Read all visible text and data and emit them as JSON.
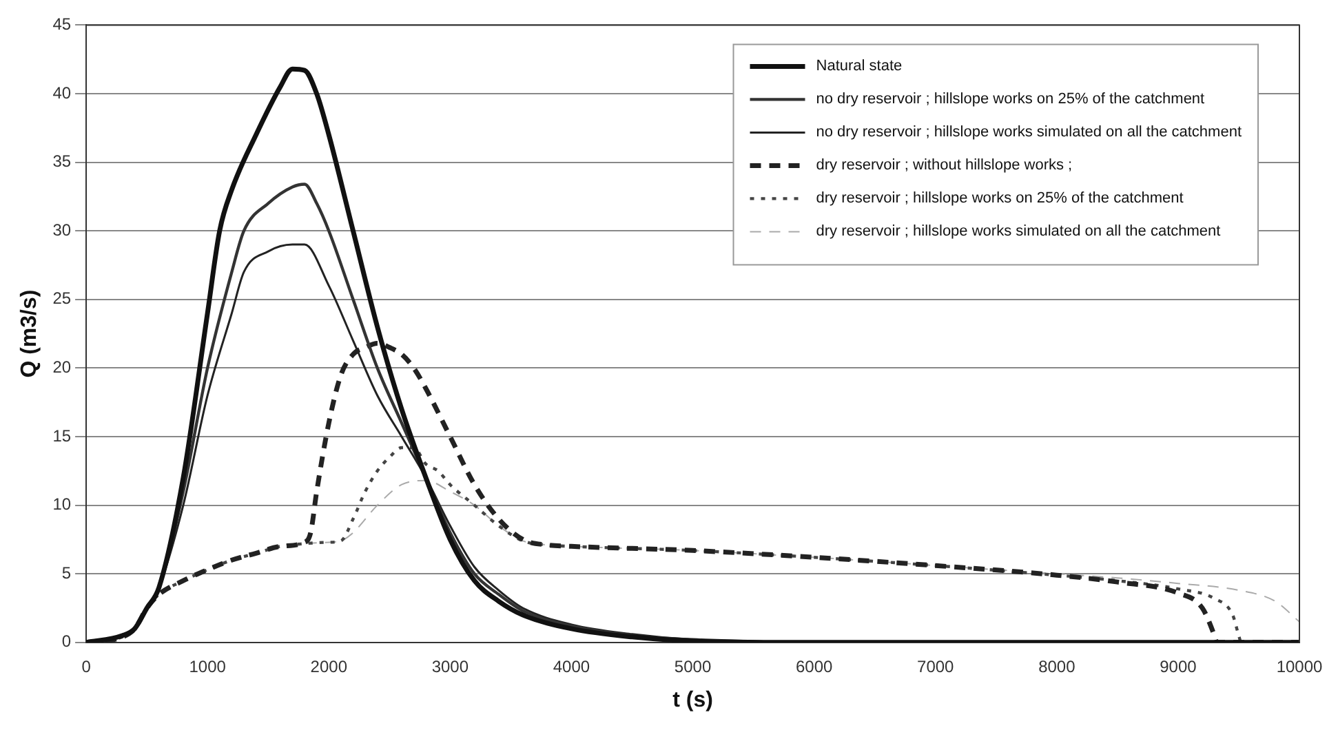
{
  "chart_data": {
    "type": "line",
    "xlabel": "t (s)",
    "ylabel": "Q (m3/s)",
    "xlim": [
      0,
      10000
    ],
    "xticks": [
      0,
      1000,
      2000,
      3000,
      4000,
      5000,
      6000,
      7000,
      8000,
      9000,
      10000
    ],
    "ylim": [
      0,
      45
    ],
    "yticks": [
      0,
      5,
      10,
      15,
      20,
      25,
      30,
      35,
      40,
      45
    ],
    "grid": "y",
    "legend": "top right",
    "marker": "none",
    "series": [
      {
        "name": "Natural state",
        "color": "#111111",
        "line_style": "solid",
        "x": [
          0,
          300,
          400,
          500,
          600,
          800,
          1000,
          1100,
          1200,
          1400,
          1600,
          1700,
          1800,
          1900,
          2000,
          2200,
          2400,
          2600,
          2800,
          3000,
          3200,
          3400,
          3600,
          4000,
          4500,
          5000,
          6000,
          10000
        ],
        "values": [
          0,
          0.5,
          1,
          2.5,
          4,
          12,
          24,
          30,
          33,
          37,
          40.5,
          41.8,
          41.7,
          40,
          37,
          30,
          23,
          17,
          12,
          7.5,
          4.5,
          3,
          2,
          1,
          0.4,
          0.1,
          0,
          0
        ]
      },
      {
        "name": "no dry reservoir ; hillslope works on 25% of the catchment",
        "color": "#333333",
        "line_style": "solid",
        "x": [
          0,
          300,
          400,
          500,
          600,
          800,
          1000,
          1200,
          1300,
          1500,
          1700,
          1800,
          1900,
          2000,
          2200,
          2400,
          2600,
          2800,
          3000,
          3200,
          3400,
          3600,
          4000,
          4500,
          5000,
          6000,
          10000
        ],
        "values": [
          0,
          0.5,
          1,
          2.5,
          4,
          11,
          20,
          27,
          30,
          32,
          33.2,
          33.4,
          32,
          30,
          25,
          20,
          16,
          12,
          8,
          5,
          3.5,
          2.3,
          1.2,
          0.5,
          0.2,
          0,
          0
        ]
      },
      {
        "name": "no dry reservoir ; hillslope works simulated on all the catchment",
        "color": "#222222",
        "line_style": "solid",
        "x": [
          0,
          300,
          400,
          500,
          600,
          800,
          1000,
          1200,
          1300,
          1500,
          1700,
          1800,
          2000,
          2200,
          2400,
          2600,
          2800,
          3000,
          3200,
          3400,
          3600,
          4000,
          4500,
          5000,
          6000,
          10000
        ],
        "values": [
          0,
          0.5,
          1,
          2.5,
          4,
          10,
          18,
          24,
          27,
          28.5,
          29,
          29,
          26,
          22,
          18,
          15,
          12,
          8.5,
          5.5,
          3.8,
          2.5,
          1.3,
          0.6,
          0.2,
          0,
          0
        ]
      },
      {
        "name": "dry reservoir ; without hillslope works ;",
        "color": "#222222",
        "line_style": "dashed",
        "x": [
          0,
          300,
          400,
          500,
          600,
          800,
          1000,
          1200,
          1400,
          1600,
          1800,
          1850,
          1900,
          2000,
          2100,
          2200,
          2300,
          2400,
          2500,
          2600,
          2700,
          2800,
          3000,
          3200,
          3400,
          3600,
          3800,
          4000,
          5000,
          6000,
          7000,
          8000,
          8500,
          9000,
          9200,
          9300,
          9320,
          10000
        ],
        "values": [
          0,
          0.4,
          1,
          2.5,
          3.5,
          4.5,
          5.3,
          6,
          6.5,
          7,
          7.3,
          8,
          11,
          16,
          19.5,
          21,
          21.5,
          21.8,
          21.5,
          21,
          20,
          18.5,
          15,
          11.5,
          9,
          7.5,
          7.1,
          7,
          6.7,
          6.2,
          5.6,
          4.9,
          4.4,
          3.6,
          2.5,
          0.5,
          0,
          0
        ]
      },
      {
        "name": "dry reservoir ; hillslope works on 25% of the catchment",
        "color": "#444444",
        "line_style": "dotted",
        "x": [
          0,
          300,
          400,
          500,
          600,
          800,
          1000,
          1200,
          1400,
          1600,
          1800,
          2000,
          2100,
          2200,
          2300,
          2400,
          2500,
          2600,
          2700,
          2800,
          2900,
          3000,
          3200,
          3400,
          3600,
          3800,
          4000,
          5000,
          6000,
          7000,
          8000,
          8500,
          9000,
          9300,
          9450,
          9500,
          9520,
          10000
        ],
        "values": [
          0,
          0.4,
          1,
          2.5,
          3.5,
          4.5,
          5.3,
          6,
          6.5,
          7,
          7.2,
          7.3,
          7.4,
          9,
          11,
          12.5,
          13.5,
          14.2,
          14.2,
          13,
          12.5,
          11.5,
          10,
          8.5,
          7.4,
          7.1,
          7,
          6.7,
          6.2,
          5.6,
          4.9,
          4.5,
          3.9,
          3.2,
          2,
          0.5,
          0,
          0
        ]
      },
      {
        "name": "dry reservoir ; hillslope works simulated on all the catchment",
        "color": "#aaaaaa",
        "line_style": "dashed",
        "x": [
          0,
          300,
          400,
          500,
          600,
          800,
          1000,
          1200,
          1400,
          1600,
          1800,
          2000,
          2100,
          2200,
          2400,
          2600,
          2800,
          3000,
          3200,
          3400,
          3600,
          3800,
          4000,
          5000,
          6000,
          7000,
          8000,
          8500,
          9000,
          9500,
          9800,
          10000
        ],
        "values": [
          0,
          0.4,
          1,
          2.5,
          3.5,
          4.5,
          5.3,
          6,
          6.5,
          7,
          7.2,
          7.3,
          7.4,
          8,
          10,
          11.5,
          11.8,
          11,
          10,
          8.5,
          7.4,
          7.1,
          7,
          6.7,
          6.2,
          5.6,
          5,
          4.7,
          4.3,
          3.8,
          3,
          1.5
        ]
      }
    ]
  }
}
